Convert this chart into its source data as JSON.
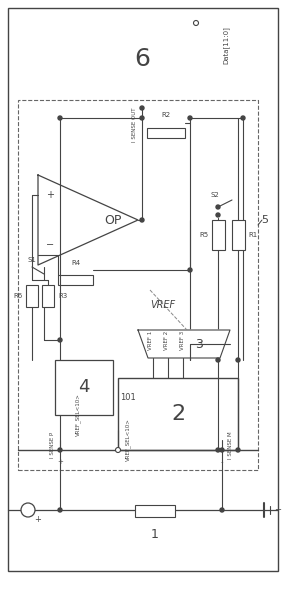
{
  "fig_w": 2.86,
  "fig_h": 5.91,
  "dpi": 100,
  "lc": "#444444",
  "lc_dash": "#666666",
  "block6_label": "6",
  "block2_label": "2",
  "block3_label": "3",
  "block4_label": "4",
  "label_op": "OP",
  "label_r2": "R2",
  "label_r3": "R3",
  "label_r6": "R6",
  "label_r5": "R5",
  "label_r1": "R1",
  "label_r4": "R4",
  "label_s1": "S1",
  "label_s2": "S2",
  "label_vref": "VREF",
  "label_5": "5",
  "label_1": "1",
  "label_plus": "+",
  "label_minus": "-",
  "data_label": "Data[11:0]",
  "i_sense_out": "I SENSE OUT",
  "i_sense_p": "I SENSE P",
  "i_sense_m": "I SENSE M",
  "vref_sel": "VREF_SEL<10>",
  "vref_1": "VREF 1",
  "vref_2": "VREF 2",
  "vref_3": "VREF 3",
  "label_101": "101"
}
